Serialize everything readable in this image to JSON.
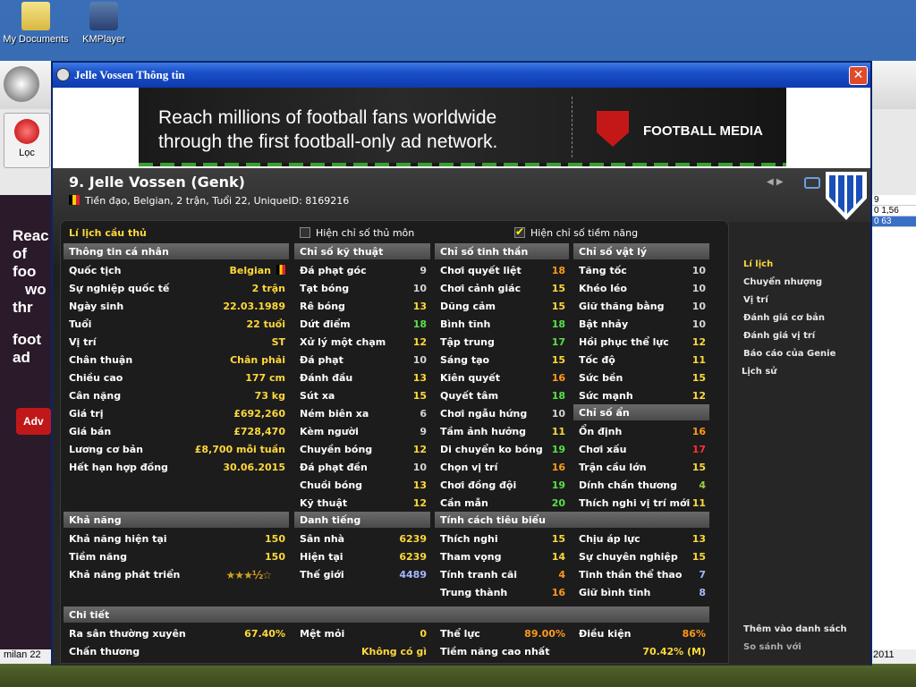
{
  "desktop": {
    "icons": [
      {
        "label": "My Documents"
      },
      {
        "label": "KMPlayer"
      }
    ]
  },
  "bg_app": {
    "filter_label": "Lọc",
    "left_ad_text": [
      "Reac",
      "of foo",
      "wo",
      "thr",
      "foot",
      "ad"
    ],
    "left_ad_button": "Adv",
    "right_cells": [
      "9",
      "0  1,56",
      "0  63"
    ],
    "task_left": "milan 22",
    "task_right": "2011"
  },
  "window": {
    "title": "Jelle Vossen Thông tin",
    "close": "✕"
  },
  "ad": {
    "line1": "Reach millions of football fans worldwide",
    "line2": "through the first football-only ad network.",
    "brand": "FOOTBALL MEDIA"
  },
  "player": {
    "name": "9. Jelle Vossen (Genk)",
    "subtitle": "Tiền đạo, Belgian, 2 trận, Tuổi 22, UniqueID: 8169216"
  },
  "tabs": {
    "profile": "Lí lịch cầu thủ",
    "show_gk": "Hiện chỉ số thủ môn",
    "show_potential": "Hiện chỉ số tiềm năng",
    "show_potential_checked": true
  },
  "personal": {
    "header": "Thông tin cá nhân",
    "rows": [
      {
        "label": "Quốc tịch",
        "value": "Belgian"
      },
      {
        "label": "Sự nghiệp quốc tế",
        "value": "2 trận"
      },
      {
        "label": "Ngày sinh",
        "value": "22.03.1989"
      },
      {
        "label": "Tuổi",
        "value": "22 tuổi"
      },
      {
        "label": "Vị trí",
        "value": "ST"
      },
      {
        "label": "Chân thuận",
        "value": "Chân phải"
      },
      {
        "label": "Chiều cao",
        "value": "177 cm"
      },
      {
        "label": "Cân nặng",
        "value": "73 kg"
      },
      {
        "label": "Giá trị",
        "value": "£692,260"
      },
      {
        "label": "Giá bán",
        "value": "£728,470"
      },
      {
        "label": "Lương cơ bản",
        "value": "£8,700 mỗi tuần"
      },
      {
        "label": "Hết hạn hợp đồng",
        "value": "30.06.2015"
      }
    ]
  },
  "technical": {
    "header": "Chỉ số kỹ thuật",
    "rows": [
      {
        "label": "Đá phạt góc",
        "value": "9",
        "c": "w"
      },
      {
        "label": "Tạt bóng",
        "value": "10",
        "c": "w"
      },
      {
        "label": "Rê bóng",
        "value": "13",
        "c": "y"
      },
      {
        "label": "Dứt điểm",
        "value": "18",
        "c": "g"
      },
      {
        "label": "Xử lý một chạm",
        "value": "12",
        "c": "y"
      },
      {
        "label": "Đá phạt",
        "value": "10",
        "c": "w"
      },
      {
        "label": "Đánh đầu",
        "value": "13",
        "c": "y"
      },
      {
        "label": "Sút xa",
        "value": "15",
        "c": "y"
      },
      {
        "label": "Ném biên xa",
        "value": "6",
        "c": "w"
      },
      {
        "label": "Kèm người",
        "value": "9",
        "c": "w"
      },
      {
        "label": "Chuyền bóng",
        "value": "12",
        "c": "y"
      },
      {
        "label": "Đá phạt đền",
        "value": "10",
        "c": "w"
      },
      {
        "label": "Chuồi bóng",
        "value": "13",
        "c": "y"
      },
      {
        "label": "Kỹ thuật",
        "value": "12",
        "c": "y"
      }
    ]
  },
  "mental": {
    "header": "Chỉ số tinh thần",
    "rows": [
      {
        "label": "Chơi quyết liệt",
        "value": "18",
        "c": "o"
      },
      {
        "label": "Chơi cảnh giác",
        "value": "15",
        "c": "y"
      },
      {
        "label": "Dũng cảm",
        "value": "15",
        "c": "y"
      },
      {
        "label": "Bình tĩnh",
        "value": "18",
        "c": "g"
      },
      {
        "label": "Tập trung",
        "value": "17",
        "c": "g"
      },
      {
        "label": "Sáng tạo",
        "value": "15",
        "c": "y"
      },
      {
        "label": "Kiên quyết",
        "value": "16",
        "c": "o"
      },
      {
        "label": "Quyết tâm",
        "value": "18",
        "c": "g"
      },
      {
        "label": "Chơi ngẫu hứng",
        "value": "10",
        "c": "w"
      },
      {
        "label": "Tầm ảnh hưởng",
        "value": "11",
        "c": "y"
      },
      {
        "label": "Di chuyển ko bóng",
        "value": "19",
        "c": "g"
      },
      {
        "label": "Chọn vị trí",
        "value": "16",
        "c": "o"
      },
      {
        "label": "Chơi đồng đội",
        "value": "19",
        "c": "g"
      },
      {
        "label": "Cần mẫn",
        "value": "20",
        "c": "g"
      }
    ]
  },
  "physical": {
    "header": "Chỉ số vật lý",
    "rows": [
      {
        "label": "Tăng tốc",
        "value": "10",
        "c": "w"
      },
      {
        "label": "Khéo léo",
        "value": "10",
        "c": "w"
      },
      {
        "label": "Giữ thăng bằng",
        "value": "10",
        "c": "w"
      },
      {
        "label": "Bật nhảy",
        "value": "10",
        "c": "w"
      },
      {
        "label": "Hồi phục thể lực",
        "value": "12",
        "c": "y"
      },
      {
        "label": "Tốc độ",
        "value": "11",
        "c": "y"
      },
      {
        "label": "Sức bền",
        "value": "15",
        "c": "y"
      },
      {
        "label": "Sức mạnh",
        "value": "12",
        "c": "y"
      }
    ]
  },
  "hidden": {
    "header": "Chỉ số ẩn",
    "rows": [
      {
        "label": "Ổn định",
        "value": "16",
        "c": "o"
      },
      {
        "label": "Chơi xấu",
        "value": "17",
        "c": "r"
      },
      {
        "label": "Trận cầu lớn",
        "value": "15",
        "c": "y"
      },
      {
        "label": "Dính chấn thương",
        "value": "4",
        "c": "lg"
      },
      {
        "label": "Thích nghi vị trí mới",
        "value": "11",
        "c": "y"
      }
    ]
  },
  "ability": {
    "header": "Khả năng",
    "rows": [
      {
        "label": "Khả năng hiện tại",
        "value": "150"
      },
      {
        "label": "Tiềm năng",
        "value": "150"
      },
      {
        "label": "Khả năng phát triển",
        "value": "★★★½☆"
      }
    ]
  },
  "reputation": {
    "header": "Danh tiếng",
    "rows": [
      {
        "label": "Sân nhà",
        "value": "6239",
        "c": "y"
      },
      {
        "label": "Hiện tại",
        "value": "6239",
        "c": "y"
      },
      {
        "label": "Thế giới",
        "value": "4489",
        "c": "b"
      }
    ]
  },
  "personality": {
    "header": "Tính cách tiêu biểu",
    "left": [
      {
        "label": "Thích nghi",
        "value": "15",
        "c": "y"
      },
      {
        "label": "Tham vọng",
        "value": "14",
        "c": "y"
      },
      {
        "label": "Tính tranh cãi",
        "value": "4",
        "c": "o"
      },
      {
        "label": "Trung thành",
        "value": "16",
        "c": "o"
      }
    ],
    "right": [
      {
        "label": "Chịu áp lực",
        "value": "13",
        "c": "y"
      },
      {
        "label": "Sự chuyên nghiệp",
        "value": "15",
        "c": "y"
      },
      {
        "label": "Tinh thần thể thao",
        "value": "7",
        "c": "b"
      },
      {
        "label": "Giữ bình tĩnh",
        "value": "8",
        "c": "b"
      }
    ]
  },
  "details": {
    "header": "Chi tiết",
    "items": [
      {
        "label": "Ra sân thường xuyên",
        "value": "67.40%"
      },
      {
        "label": "Mệt mỏi",
        "value": "0"
      },
      {
        "label": "Thể lực",
        "value": "89.00%"
      },
      {
        "label": "Điều kiện",
        "value": "86%"
      },
      {
        "label": "Chấn thương",
        "value": "Không có gì"
      },
      {
        "label": "Tiềm năng cao nhất",
        "value": "70.42% (M)"
      }
    ]
  },
  "side_nav": {
    "items": [
      "Lí lịch",
      "Chuyển nhượng",
      "Vị trí",
      "Đánh giá cơ bản",
      "Đánh giá vị trí",
      "Báo cáo của Genie",
      "Lịch sử"
    ],
    "bottom": [
      "Thêm vào danh sách",
      "So sánh với"
    ]
  }
}
